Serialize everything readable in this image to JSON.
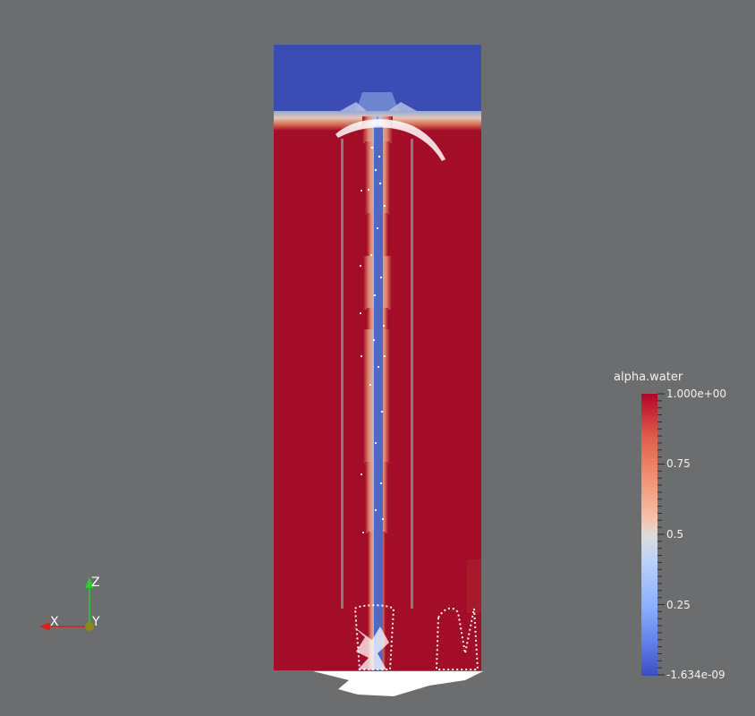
{
  "colorbar": {
    "title": "alpha.water",
    "ticks": [
      {
        "label": "1.000e+00",
        "value": 1.0
      },
      {
        "label": "0.75",
        "value": 0.75
      },
      {
        "label": "0.5",
        "value": 0.5
      },
      {
        "label": "0.25",
        "value": 0.25
      },
      {
        "label": "-1.634e-09",
        "value": 0.0
      }
    ]
  },
  "axes": {
    "x_label": "X",
    "y_label": "Y",
    "z_label": "Z"
  },
  "colors": {
    "background": "#6b6d6f",
    "water": "#b40426",
    "air": "#3b4cc0",
    "particles": "#ffffff",
    "x_axis": "#e0201b",
    "y_axis": "#b8b800",
    "z_axis": "#2ecc2e"
  }
}
